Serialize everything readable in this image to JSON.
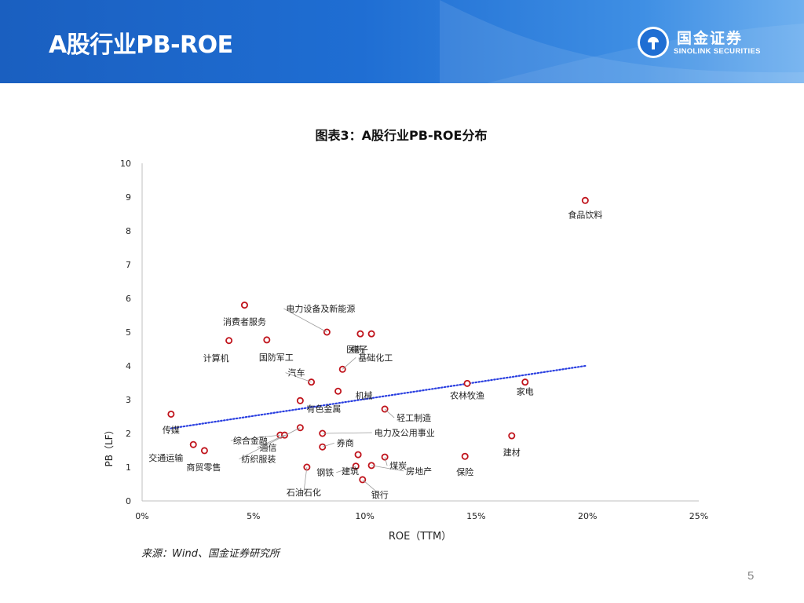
{
  "header": {
    "title": "A股行业PB-ROE"
  },
  "brand": {
    "cn": "国金证券",
    "en": "SINOLINK SECURITIES"
  },
  "footer": {
    "source": "来源：Wind、国金证券研究所",
    "page": "5"
  },
  "colors": {
    "header": "#1f6ed3",
    "point": "#c0141c",
    "trend": "#2a3fe0"
  },
  "chart_data": {
    "type": "scatter",
    "title": "图表3：A股行业PB-ROE分布",
    "xlabel": "ROE（TTM）",
    "ylabel": "PB（LF）",
    "xlim": [
      0,
      25
    ],
    "ylim": [
      0,
      10
    ],
    "xticks": [
      "0%",
      "5%",
      "10%",
      "15%",
      "20%",
      "25%"
    ],
    "yticks": [
      "0",
      "1",
      "2",
      "3",
      "4",
      "5",
      "6",
      "7",
      "8",
      "9",
      "10"
    ],
    "x_unit": "%",
    "trendline": {
      "style": "dotted",
      "x": [
        1.3,
        19.9
      ],
      "y": [
        2.15,
        4.0
      ]
    },
    "points": [
      {
        "name": "食品饮料",
        "x": 19.9,
        "y": 8.9
      },
      {
        "name": "消费者服务",
        "x": 4.6,
        "y": 5.8
      },
      {
        "name": "电力设备及新能源",
        "x": 8.3,
        "y": 5.0
      },
      {
        "name": "计算机",
        "x": 3.9,
        "y": 4.75
      },
      {
        "name": "国防军工",
        "x": 5.6,
        "y": 4.77
      },
      {
        "name": "电子",
        "x": 9.8,
        "y": 4.95
      },
      {
        "name": "医药",
        "x": 10.3,
        "y": 4.95
      },
      {
        "name": "基础化工",
        "x": 9.0,
        "y": 3.9
      },
      {
        "name": "汽车",
        "x": 7.6,
        "y": 3.52
      },
      {
        "name": "有色金属",
        "x": 7.1,
        "y": 2.97
      },
      {
        "name": "机械",
        "x": 8.8,
        "y": 3.25
      },
      {
        "name": "农林牧渔",
        "x": 14.6,
        "y": 3.48
      },
      {
        "name": "家电",
        "x": 17.2,
        "y": 3.52
      },
      {
        "name": "轻工制造",
        "x": 10.9,
        "y": 2.72
      },
      {
        "name": "传媒",
        "x": 1.3,
        "y": 2.57
      },
      {
        "name": "综合金融",
        "x": 6.2,
        "y": 1.95
      },
      {
        "name": "通信",
        "x": 6.4,
        "y": 1.95
      },
      {
        "name": "纺织服装",
        "x": 7.1,
        "y": 2.17
      },
      {
        "name": "电力及公用事业",
        "x": 8.1,
        "y": 2.0
      },
      {
        "name": "券商",
        "x": 8.1,
        "y": 1.6
      },
      {
        "name": "交通运输",
        "x": 2.3,
        "y": 1.67
      },
      {
        "name": "商贸零售",
        "x": 2.8,
        "y": 1.49
      },
      {
        "name": "建材",
        "x": 16.6,
        "y": 1.93
      },
      {
        "name": "保险",
        "x": 14.5,
        "y": 1.32
      },
      {
        "name": "石油石化",
        "x": 7.4,
        "y": 1.0
      },
      {
        "name": "钢铁",
        "x": 9.6,
        "y": 1.03
      },
      {
        "name": "建筑",
        "x": 9.7,
        "y": 1.37
      },
      {
        "name": "煤炭",
        "x": 10.9,
        "y": 1.3
      },
      {
        "name": "房地产",
        "x": 10.3,
        "y": 1.05
      },
      {
        "name": "银行",
        "x": 9.9,
        "y": 0.63
      }
    ]
  }
}
